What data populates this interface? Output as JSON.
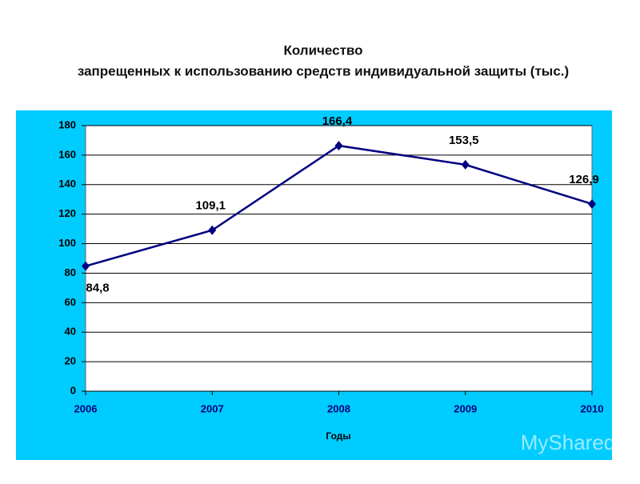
{
  "chart_data": {
    "type": "line",
    "title": [
      "Количество",
      "запрещенных к использованию средств индивидуальной защиты (тыс.)"
    ],
    "x_label": "Годы",
    "x": [
      2006,
      2007,
      2008,
      2009,
      2010
    ],
    "xlim": [
      2006,
      2010
    ],
    "xticks": [
      2006,
      2007,
      2008,
      2009,
      2010
    ],
    "series": [
      {
        "name": "Количество",
        "color": "#000080",
        "values": [
          84.8,
          109.1,
          166.4,
          153.5,
          126.9
        ],
        "value_labels": [
          "84,8",
          "109,1",
          "166,4",
          "153,5",
          "126,9"
        ]
      }
    ],
    "ylim": [
      0,
      180
    ],
    "yticks": [
      0,
      20,
      40,
      60,
      80,
      100,
      120,
      140,
      160,
      180
    ],
    "grid": true,
    "background": "#00ccff",
    "watermark": "MyShared"
  }
}
